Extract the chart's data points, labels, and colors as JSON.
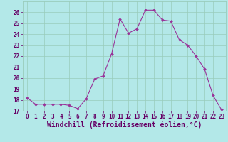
{
  "x": [
    0,
    1,
    2,
    3,
    4,
    5,
    6,
    7,
    8,
    9,
    10,
    11,
    12,
    13,
    14,
    15,
    16,
    17,
    18,
    19,
    20,
    21,
    22,
    23
  ],
  "y": [
    18.2,
    17.6,
    17.6,
    17.6,
    17.6,
    17.5,
    17.2,
    18.1,
    19.9,
    20.2,
    22.2,
    25.4,
    24.1,
    24.5,
    26.2,
    26.2,
    25.3,
    25.2,
    23.5,
    23.0,
    22.0,
    20.8,
    18.4,
    17.1
  ],
  "line_color": "#993399",
  "marker_color": "#993399",
  "bg_color": "#b3e8e8",
  "grid_color": "#99ccbb",
  "xlabel": "Windchill (Refroidissement éolien,°C)",
  "ylim": [
    17,
    27
  ],
  "xlim_min": -0.5,
  "xlim_max": 23.5,
  "yticks": [
    17,
    18,
    19,
    20,
    21,
    22,
    23,
    24,
    25,
    26
  ],
  "xticks": [
    0,
    1,
    2,
    3,
    4,
    5,
    6,
    7,
    8,
    9,
    10,
    11,
    12,
    13,
    14,
    15,
    16,
    17,
    18,
    19,
    20,
    21,
    22,
    23
  ],
  "tick_label_color": "#660066",
  "axis_label_color": "#660066",
  "tick_fontsize": 5.5,
  "xlabel_fontsize": 7.0
}
